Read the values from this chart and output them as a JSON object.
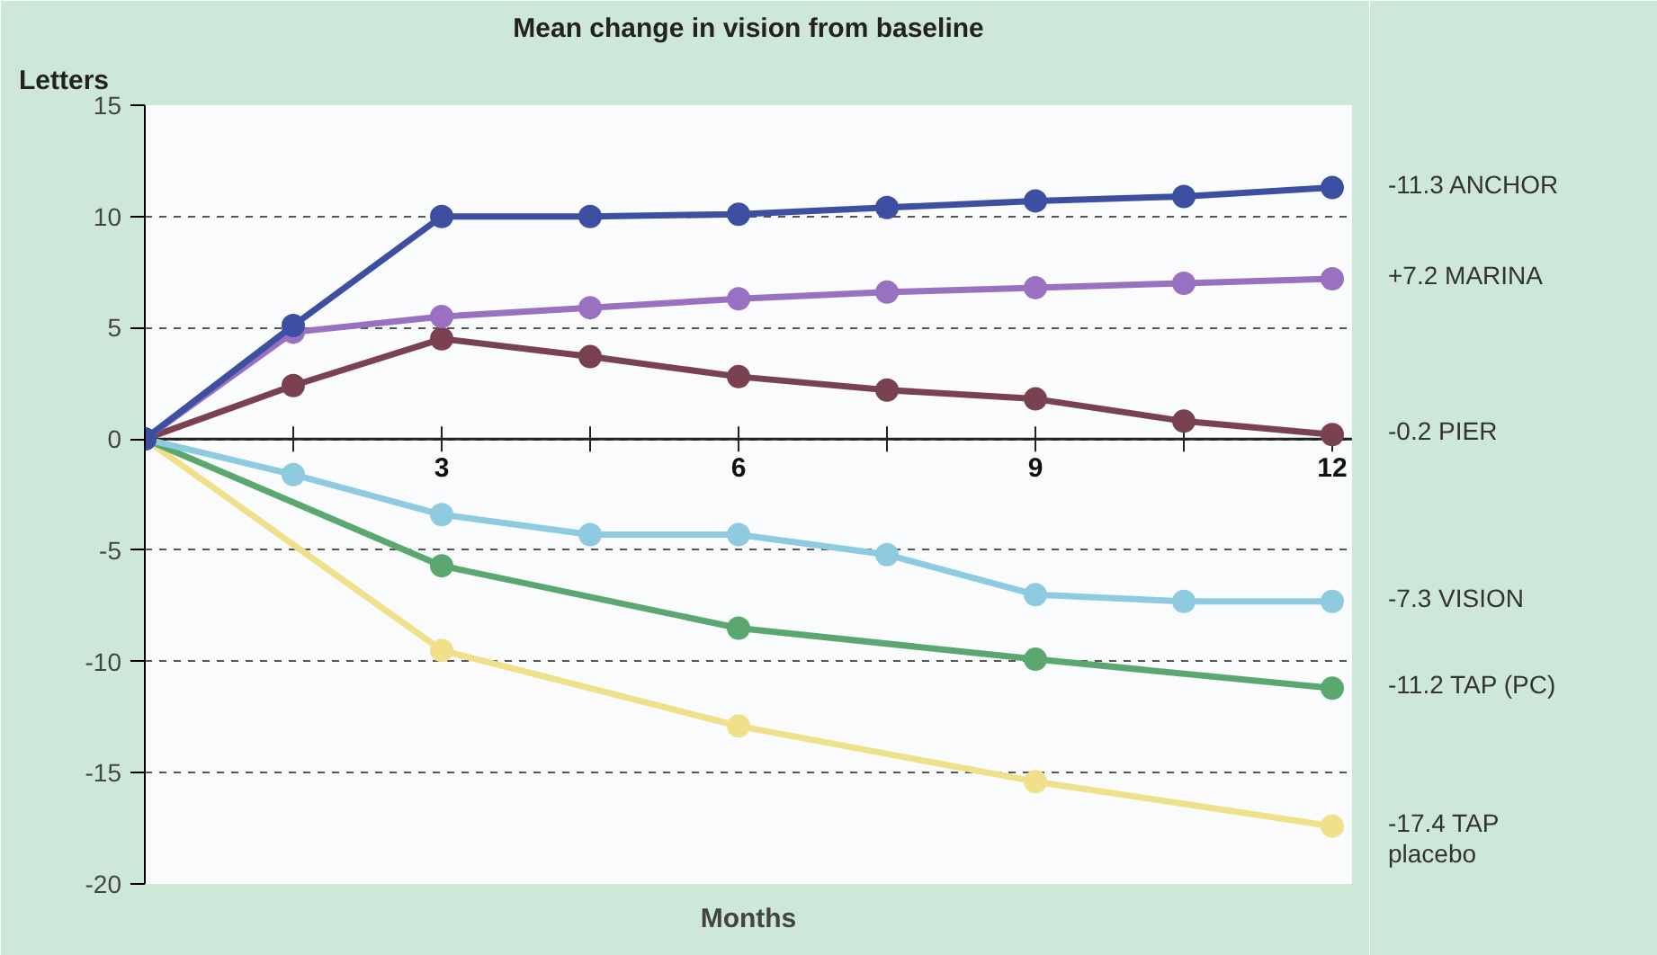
{
  "chart_data": {
    "type": "line",
    "title": "Mean change in vision from baseline",
    "xlabel": "Months",
    "ylabel": "Letters",
    "x": [
      0,
      1.5,
      3,
      4.5,
      6,
      7.5,
      9,
      10.5,
      12
    ],
    "series": [
      {
        "color": "#3d4fa0",
        "values": [
          0,
          5.1,
          10,
          10,
          10.1,
          10.4,
          10.7,
          10.9,
          11.3
        ]
      },
      {
        "color": "#9a70c0",
        "values": [
          0,
          4.8,
          5.5,
          5.9,
          6.3,
          6.6,
          6.8,
          7.0,
          7.2
        ]
      },
      {
        "color": "#7a4150",
        "values": [
          0,
          2.4,
          4.5,
          3.7,
          2.8,
          2.2,
          1.8,
          0.8,
          0.2
        ]
      },
      {
        "color": "#8ecae0",
        "values": [
          0,
          -1.6,
          -3.4,
          -4.3,
          -4.3,
          -5.2,
          -7.0,
          -7.3,
          -7.3
        ]
      },
      {
        "color": "#5aa870",
        "x": [
          0,
          3,
          6,
          9,
          12
        ],
        "values": [
          0,
          -5.7,
          -8.5,
          -9.9,
          -11.2
        ]
      },
      {
        "color": "#f0e08a",
        "x": [
          0,
          3,
          6,
          9,
          12
        ],
        "values": [
          0,
          -9.5,
          -12.9,
          -15.4,
          -17.4
        ]
      }
    ],
    "xlim": [
      0,
      12.2
    ],
    "xticks": [
      {
        "value": 1.5,
        "label": null
      },
      3,
      {
        "value": 4.5,
        "label": null
      },
      6,
      {
        "value": 7.5,
        "label": null
      },
      9,
      {
        "value": 10.5,
        "label": null
      },
      12
    ],
    "ylim": [
      -20,
      15
    ],
    "yticks": [
      -20,
      -15,
      -10,
      -5,
      0,
      5,
      10,
      15
    ],
    "grid": "y",
    "marker": "circle",
    "line_style": "solid",
    "annotations": [
      "-11.3 ANCHOR",
      "+7.2 MARINA",
      "-0.2 PIER",
      "-7.3 VISION",
      "-11.2 TAP (PC)",
      "-17.4 TAP\n      placebo"
    ]
  }
}
